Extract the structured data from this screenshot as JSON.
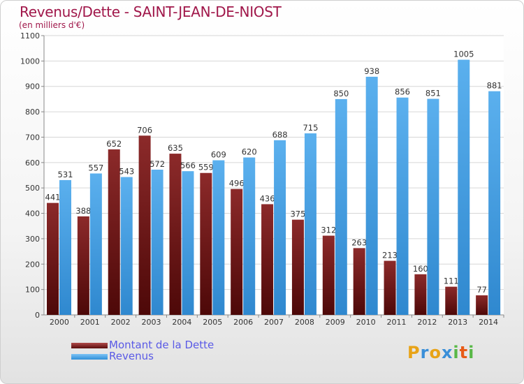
{
  "chart_data": {
    "type": "bar",
    "title": "Revenus/Dette - SAINT-JEAN-DE-NIOST",
    "subtitle": "(en milliers d'€)",
    "categories": [
      "2000",
      "2001",
      "2002",
      "2003",
      "2004",
      "2005",
      "2006",
      "2007",
      "2008",
      "2009",
      "2010",
      "2011",
      "2012",
      "2013",
      "2014"
    ],
    "series": [
      {
        "name": "Montant de la Dette",
        "color": "#7a1a1a",
        "values": [
          441,
          388,
          652,
          706,
          635,
          559,
          496,
          436,
          375,
          312,
          263,
          213,
          160,
          111,
          77
        ]
      },
      {
        "name": "Revenus",
        "color": "#4aa3e8",
        "values": [
          531,
          557,
          543,
          572,
          566,
          609,
          620,
          688,
          715,
          850,
          938,
          856,
          851,
          1005,
          881
        ]
      }
    ],
    "ylim": [
      0,
      1100
    ],
    "yticks": [
      0,
      100,
      200,
      300,
      400,
      500,
      600,
      700,
      800,
      900,
      1000,
      1100
    ],
    "grid": true,
    "legend_position": "bottom-left"
  },
  "logo": {
    "letters": [
      "P",
      "r",
      "o",
      "x",
      "i",
      "t",
      "i"
    ],
    "colors": [
      "#e8a317",
      "#3a8fd8",
      "#e8a317",
      "#3a8fd8",
      "#59b847",
      "#e85b17",
      "#59b847"
    ]
  }
}
